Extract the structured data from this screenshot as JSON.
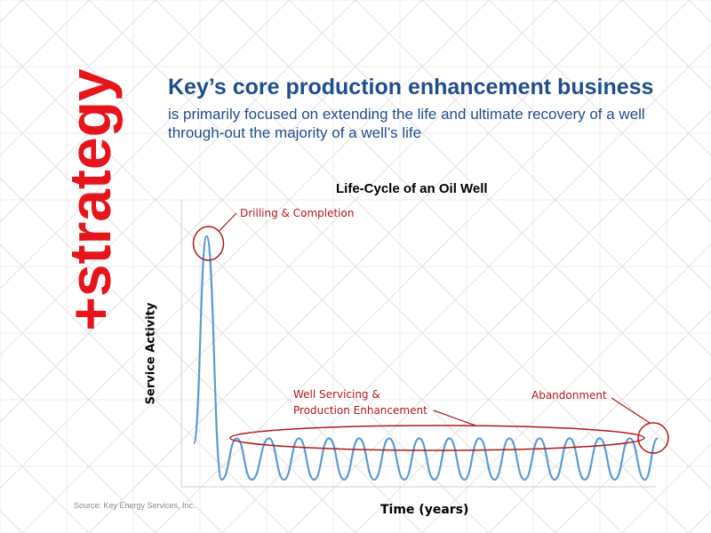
{
  "side_word": "+strategy",
  "headline": "Key’s core production enhancement business",
  "subhead": "is primarily focused on extending the life and ultimate recovery of a well through-out the majority of a well’s life",
  "source": "Source: Key Energy Services, Inc.",
  "colors": {
    "side_word": "#e8141c",
    "headline": "#1f4e8c",
    "curve": "#5b9bd5",
    "annotation": "#b01a1a"
  },
  "chart_data": {
    "type": "line",
    "title": "Life-Cycle of an Oil Well",
    "xlabel": "Time (years)",
    "ylabel": "Service Activity",
    "grid": false,
    "legend": "none",
    "series": [
      {
        "values": [
          {
            "x": 0.0,
            "y": 0.15
          },
          {
            "x": 0.6,
            "y": 1.0
          },
          {
            "x": 1.3,
            "y": 0.0
          },
          {
            "x": 2.0,
            "y": 0.17
          },
          {
            "x": 2.7,
            "y": 0.0
          },
          {
            "x": 3.5,
            "y": 0.17
          },
          {
            "x": 4.2,
            "y": 0.0
          },
          {
            "x": 4.9,
            "y": 0.17
          },
          {
            "x": 5.6,
            "y": 0.0
          },
          {
            "x": 6.3,
            "y": 0.17
          },
          {
            "x": 7.0,
            "y": 0.0
          },
          {
            "x": 7.7,
            "y": 0.17
          },
          {
            "x": 8.4,
            "y": 0.0
          },
          {
            "x": 9.1,
            "y": 0.17
          },
          {
            "x": 9.8,
            "y": 0.0
          },
          {
            "x": 10.5,
            "y": 0.17
          },
          {
            "x": 11.2,
            "y": 0.0
          },
          {
            "x": 11.9,
            "y": 0.17
          },
          {
            "x": 12.6,
            "y": 0.0
          },
          {
            "x": 13.3,
            "y": 0.17
          },
          {
            "x": 14.0,
            "y": 0.0
          },
          {
            "x": 14.7,
            "y": 0.17
          },
          {
            "x": 15.4,
            "y": 0.0
          },
          {
            "x": 16.1,
            "y": 0.17
          },
          {
            "x": 16.8,
            "y": 0.0
          },
          {
            "x": 17.5,
            "y": 0.17
          },
          {
            "x": 18.2,
            "y": 0.0
          },
          {
            "x": 18.9,
            "y": 0.17
          },
          {
            "x": 19.6,
            "y": 0.0
          },
          {
            "x": 20.3,
            "y": 0.17
          },
          {
            "x": 21.0,
            "y": 0.0
          },
          {
            "x": 21.6,
            "y": 0.17
          }
        ]
      }
    ],
    "annotations": [
      {
        "text": "Drilling & Completion"
      },
      {
        "text": "Well Servicing &\nProduction Enhancement"
      },
      {
        "text": "Abandonment"
      }
    ]
  }
}
